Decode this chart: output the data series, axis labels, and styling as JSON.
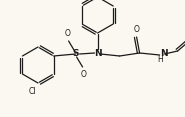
{
  "bg_color": "#faf8f0",
  "line_color": "#1a1a1a",
  "lw": 0.9,
  "figsize": [
    1.85,
    1.17
  ],
  "dpi": 100,
  "xlim": [
    0,
    185
  ],
  "ylim": [
    0,
    117
  ]
}
